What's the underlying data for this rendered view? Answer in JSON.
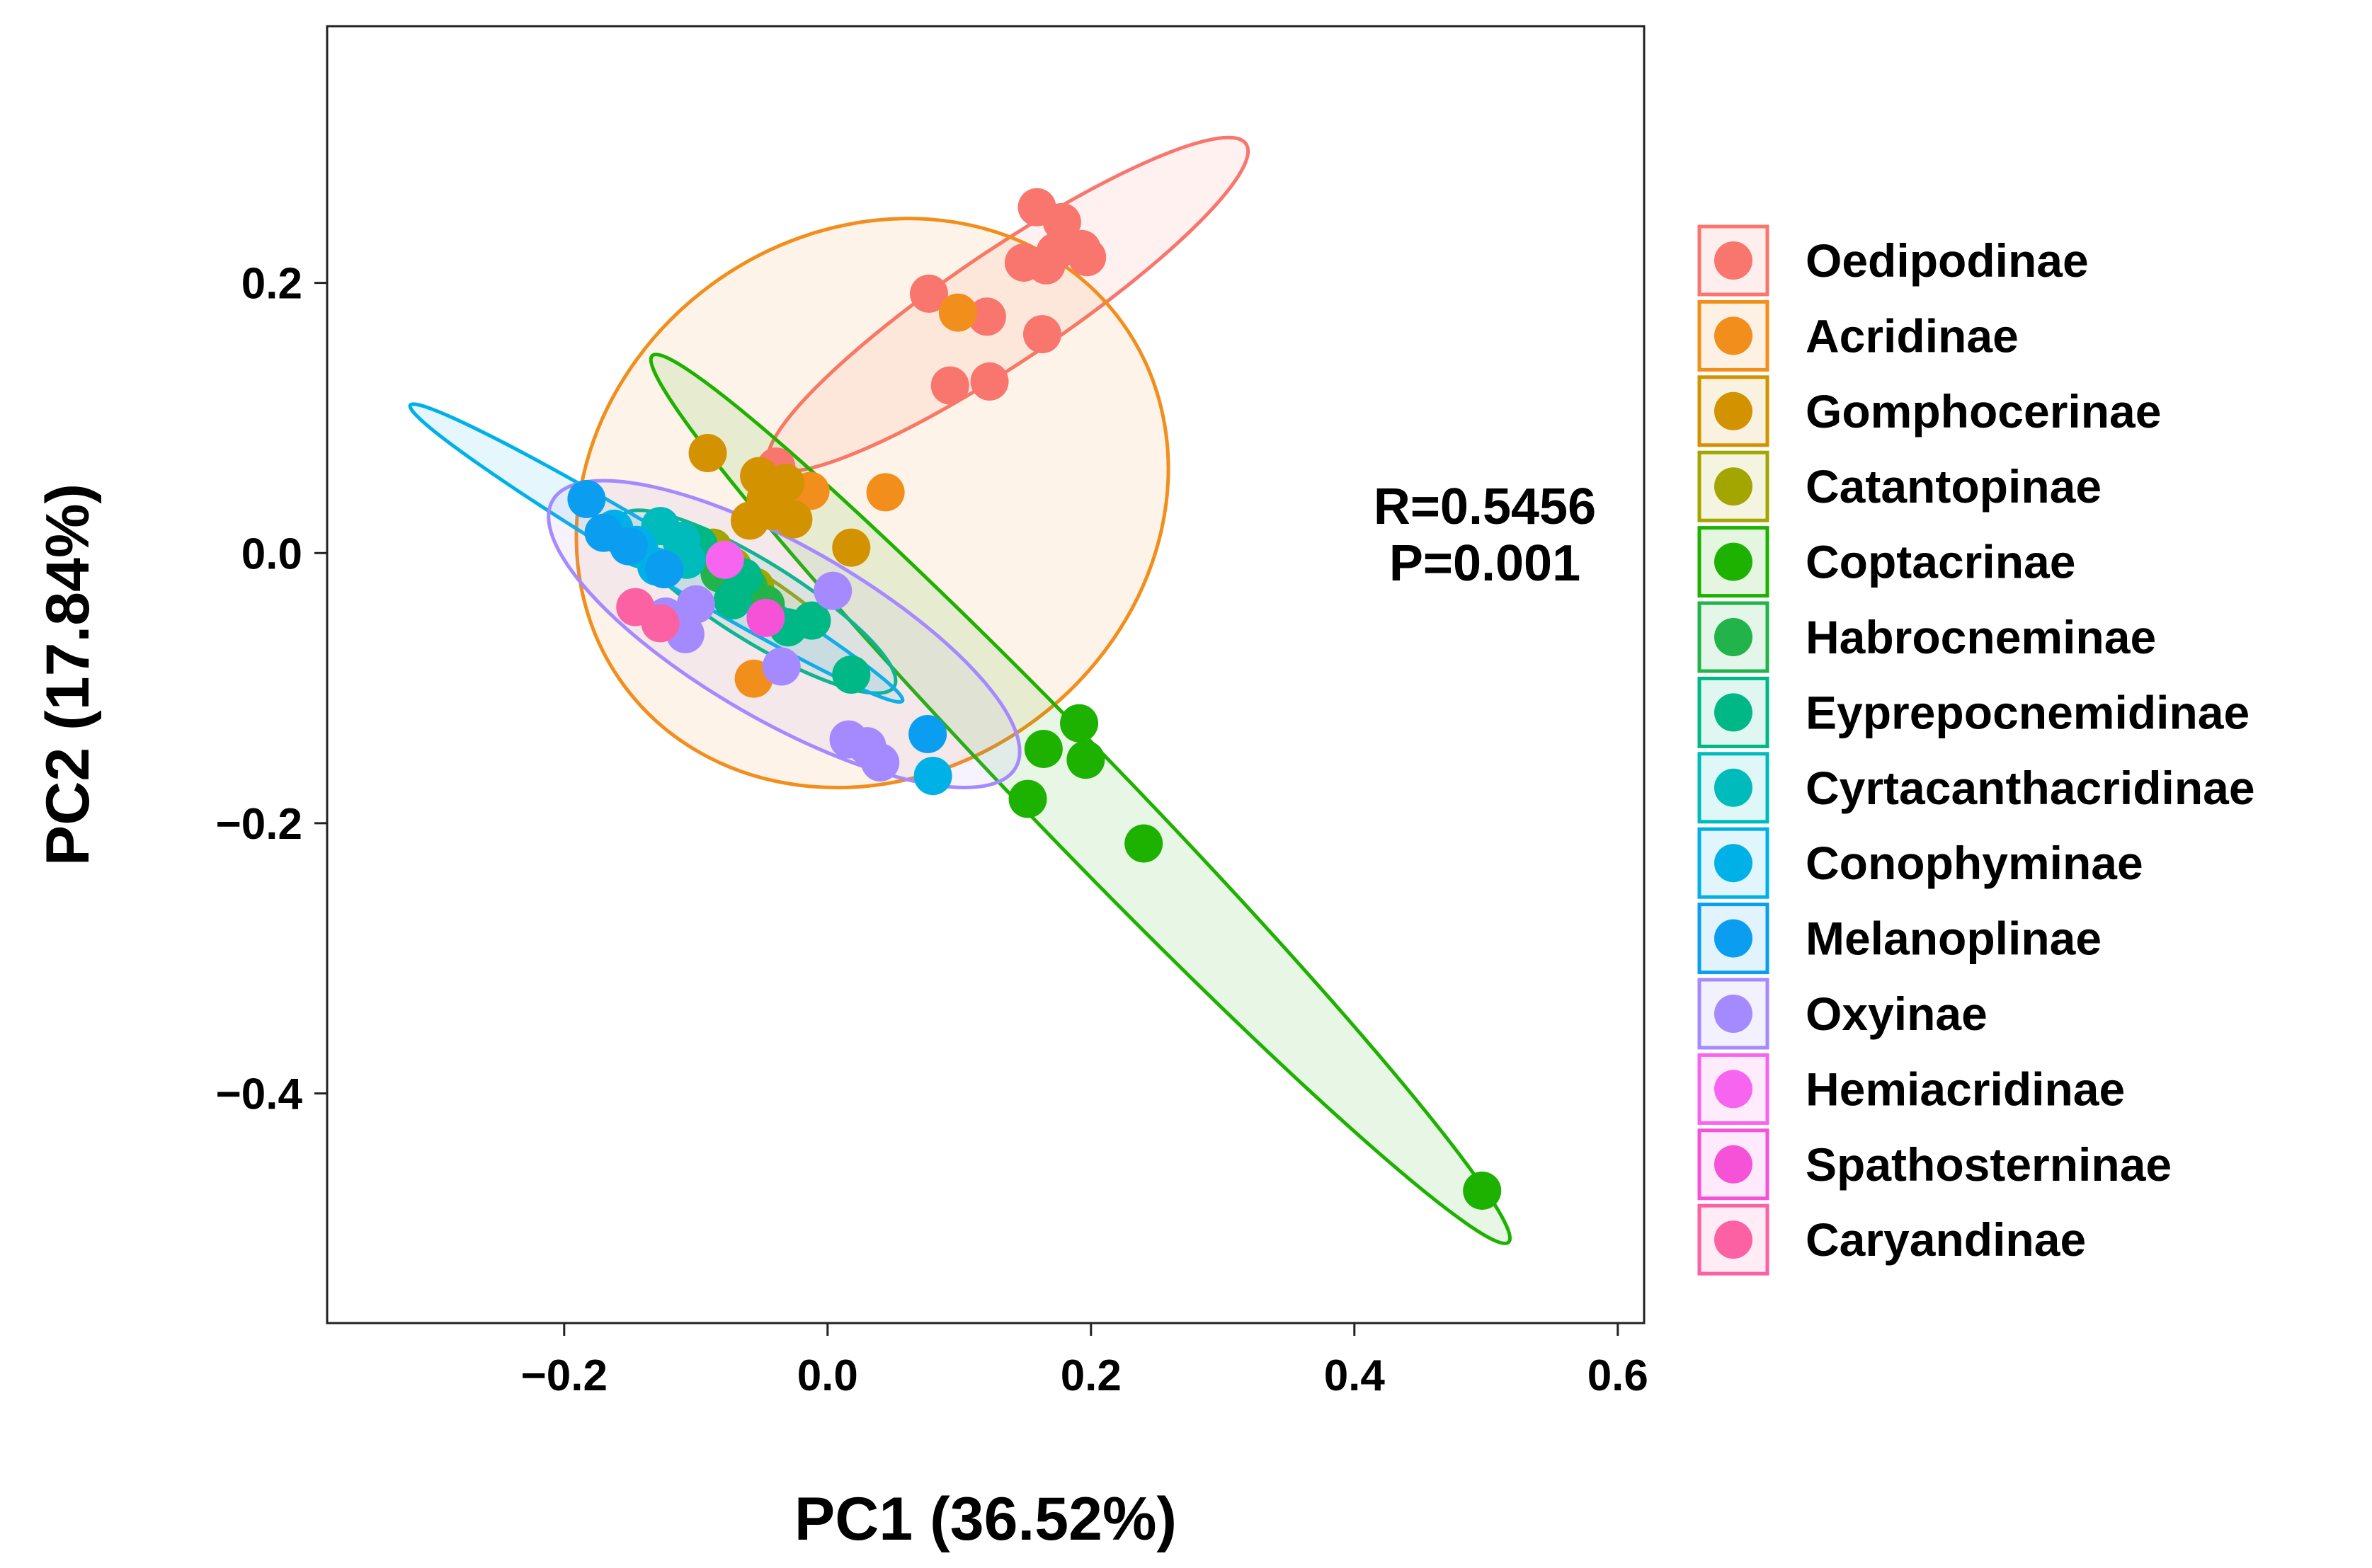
{
  "chart_data": {
    "type": "scatter",
    "title": "",
    "xlabel": "PC1 (36.52%)",
    "ylabel": "PC2 (17.84%)",
    "xlim": [
      -0.38,
      0.62
    ],
    "ylim": [
      -0.57,
      0.39
    ],
    "xticks": [
      -0.2,
      0.0,
      0.2,
      0.4,
      0.6
    ],
    "xtick_labels": [
      "−0.2",
      "0.0",
      "0.2",
      "0.4",
      "0.6"
    ],
    "yticks": [
      0.2,
      0.0,
      -0.2,
      -0.4
    ],
    "ytick_labels": [
      "0.2",
      "0.0",
      "−0.2",
      "−0.4"
    ],
    "grid": false,
    "legend_position": "right",
    "annotations": [
      "R=0.5456",
      "P=0.001"
    ],
    "series": [
      {
        "name": "Oedipodinae",
        "color": "#F8766D",
        "points": [
          [
            0.159,
            0.256
          ],
          [
            0.178,
            0.245
          ],
          [
            0.193,
            0.225
          ],
          [
            0.166,
            0.213
          ],
          [
            0.173,
            0.223
          ],
          [
            0.149,
            0.215
          ],
          [
            0.197,
            0.219
          ],
          [
            0.077,
            0.192
          ],
          [
            0.121,
            0.175
          ],
          [
            0.163,
            0.162
          ],
          [
            0.093,
            0.124
          ],
          [
            0.123,
            0.127
          ],
          [
            -0.039,
            0.064
          ]
        ],
        "ellipse": {
          "cx": 0.137,
          "cy": 0.184,
          "rx": 0.218,
          "ry": 0.042,
          "angle": 34
        }
      },
      {
        "name": "Acridinae",
        "color": "#F28E1C",
        "points": [
          [
            0.099,
            0.178
          ],
          [
            -0.013,
            0.046
          ],
          [
            0.044,
            0.045
          ],
          [
            -0.056,
            -0.093
          ]
        ],
        "ellipse": {
          "cx": 0.034,
          "cy": 0.037,
          "rx": 0.234,
          "ry": 0.206,
          "angle": 36
        }
      },
      {
        "name": "Gomphocerinae",
        "color": "#D39200",
        "points": [
          [
            -0.091,
            0.074
          ],
          [
            -0.052,
            0.057
          ],
          [
            -0.032,
            0.052
          ],
          [
            -0.047,
            0.04
          ],
          [
            -0.041,
            0.031
          ],
          [
            -0.059,
            0.024
          ],
          [
            -0.026,
            0.025
          ],
          [
            0.018,
            0.004
          ]
        ],
        "ellipse": null
      },
      {
        "name": "Catantopinae",
        "color": "#A3A500",
        "points": [
          [
            -0.087,
            0.004
          ],
          [
            -0.072,
            -0.01
          ],
          [
            -0.055,
            -0.025
          ]
        ],
        "ellipse": {
          "cx": -0.065,
          "cy": -0.015,
          "rx": 0.075,
          "ry": 0.008,
          "angle": -32
        }
      },
      {
        "name": "Coptacrinae",
        "color": "#1DB100",
        "points": [
          [
            0.164,
            -0.145
          ],
          [
            0.191,
            -0.126
          ],
          [
            0.196,
            -0.153
          ],
          [
            0.152,
            -0.182
          ],
          [
            0.24,
            -0.215
          ],
          [
            0.497,
            -0.472
          ]
        ],
        "ellipse": {
          "cx": 0.192,
          "cy": -0.182,
          "rx": 0.468,
          "ry": 0.036,
          "angle": -46
        }
      },
      {
        "name": "Habrocneminae",
        "color": "#22B34A",
        "points": [
          [
            -0.06,
            -0.025
          ],
          [
            -0.047,
            -0.038
          ],
          [
            -0.082,
            -0.015
          ]
        ],
        "ellipse": null
      },
      {
        "name": "Eyprepocnemidinae",
        "color": "#00B886",
        "points": [
          [
            -0.098,
            0.006
          ],
          [
            -0.072,
            -0.035
          ],
          [
            -0.03,
            -0.055
          ],
          [
            -0.012,
            -0.05
          ],
          [
            0.018,
            -0.09
          ],
          [
            -0.064,
            -0.018
          ]
        ],
        "ellipse": {
          "cx": -0.053,
          "cy": -0.036,
          "rx": 0.122,
          "ry": 0.03,
          "angle": -32
        }
      },
      {
        "name": "Cyrtacanthacridinae",
        "color": "#00BBBB",
        "points": [
          [
            -0.127,
            0.02
          ],
          [
            -0.111,
            0.009
          ],
          [
            -0.143,
            0.003
          ],
          [
            -0.107,
            -0.005
          ]
        ],
        "ellipse": null
      },
      {
        "name": "Conophyminae",
        "color": "#00B1E8",
        "points": [
          [
            -0.162,
            0.018
          ],
          [
            -0.145,
            0.006
          ],
          [
            0.08,
            -0.165
          ],
          [
            -0.13,
            -0.01
          ]
        ],
        "ellipse": {
          "cx": -0.13,
          "cy": 0.0,
          "rx": 0.218,
          "ry": 0.016,
          "angle": -31
        }
      },
      {
        "name": "Melanoplinae",
        "color": "#0B9DF0",
        "points": [
          [
            -0.183,
            0.04
          ],
          [
            -0.17,
            0.015
          ],
          [
            -0.151,
            0.005
          ],
          [
            0.076,
            -0.134
          ],
          [
            -0.124,
            -0.012
          ]
        ],
        "ellipse": null
      },
      {
        "name": "Oxyinae",
        "color": "#A58AFF",
        "points": [
          [
            -0.1,
            -0.038
          ],
          [
            -0.108,
            -0.06
          ],
          [
            0.004,
            -0.028
          ],
          [
            -0.035,
            -0.084
          ],
          [
            0.016,
            -0.138
          ],
          [
            0.03,
            -0.143
          ],
          [
            0.04,
            -0.155
          ],
          [
            -0.123,
            -0.047
          ]
        ],
        "ellipse": {
          "cx": -0.033,
          "cy": -0.06,
          "rx": 0.203,
          "ry": 0.066,
          "angle": -30
        }
      },
      {
        "name": "Hemiacridinae",
        "color": "#F765F0",
        "points": [
          [
            -0.078,
            -0.005
          ]
        ],
        "ellipse": null
      },
      {
        "name": "Spathosterninae",
        "color": "#F652D8",
        "points": [
          [
            -0.047,
            -0.048
          ]
        ],
        "ellipse": null
      },
      {
        "name": "Caryandinae",
        "color": "#FB61A3",
        "points": [
          [
            -0.146,
            -0.04
          ],
          [
            -0.127,
            -0.052
          ]
        ],
        "ellipse": null
      }
    ]
  }
}
